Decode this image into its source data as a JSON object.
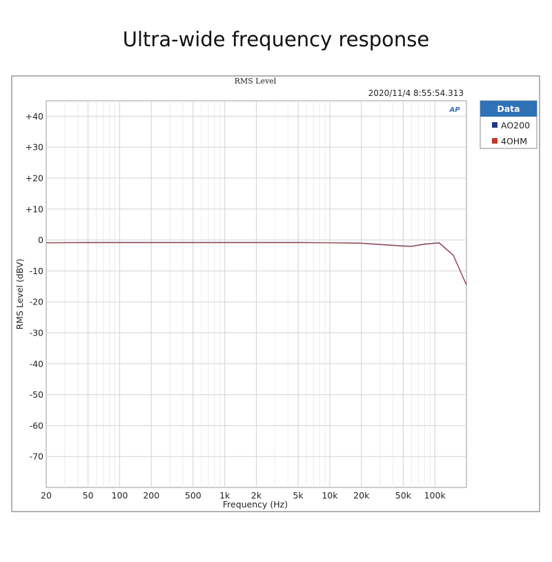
{
  "heading": "Ultra-wide frequency response",
  "chart_data": {
    "type": "line",
    "title": "RMS Level",
    "timestamp": "2020/11/4 8:55:54.313",
    "logo": "AP",
    "xlabel": "Frequency (Hz)",
    "ylabel": "RMS Level (dBV)",
    "x_scale": "log",
    "xlim": [
      20,
      200000
    ],
    "ylim": [
      -80,
      45
    ],
    "grid": true,
    "x_ticks": [
      {
        "value": 20,
        "label": "20"
      },
      {
        "value": 50,
        "label": "50"
      },
      {
        "value": 100,
        "label": "100"
      },
      {
        "value": 200,
        "label": "200"
      },
      {
        "value": 500,
        "label": "500"
      },
      {
        "value": 1000,
        "label": "1k"
      },
      {
        "value": 2000,
        "label": "2k"
      },
      {
        "value": 5000,
        "label": "5k"
      },
      {
        "value": 10000,
        "label": "10k"
      },
      {
        "value": 20000,
        "label": "20k"
      },
      {
        "value": 50000,
        "label": "50k"
      },
      {
        "value": 100000,
        "label": "100k"
      }
    ],
    "y_ticks": [
      {
        "value": 40,
        "label": "+40"
      },
      {
        "value": 30,
        "label": "+30"
      },
      {
        "value": 20,
        "label": "+20"
      },
      {
        "value": 10,
        "label": "+10"
      },
      {
        "value": 0,
        "label": "0"
      },
      {
        "value": -10,
        "label": "-10"
      },
      {
        "value": -20,
        "label": "-20"
      },
      {
        "value": -30,
        "label": "-30"
      },
      {
        "value": -40,
        "label": "-40"
      },
      {
        "value": -50,
        "label": "-50"
      },
      {
        "value": -60,
        "label": "-60"
      },
      {
        "value": -70,
        "label": "-70"
      }
    ],
    "legend": {
      "title": "Data",
      "position": "top-right"
    },
    "series": [
      {
        "name": "AO200",
        "color": "#1f3a8a",
        "x": [
          20,
          50,
          100,
          200,
          500,
          1000,
          2000,
          5000,
          10000,
          20000,
          30000,
          50000,
          60000,
          80000,
          100000,
          110000,
          150000,
          200000
        ],
        "y": [
          -0.9,
          -0.8,
          -0.8,
          -0.8,
          -0.8,
          -0.8,
          -0.8,
          -0.8,
          -0.9,
          -1.0,
          -1.4,
          -1.9,
          -2.0,
          -1.3,
          -1.0,
          -0.9,
          -4.9,
          -14.5
        ]
      },
      {
        "name": "4OHM",
        "color": "#c0392b",
        "x": [
          20,
          50,
          100,
          200,
          500,
          1000,
          2000,
          5000,
          10000,
          20000,
          30000,
          50000,
          60000,
          80000,
          100000,
          110000,
          150000,
          200000
        ],
        "y": [
          -0.9,
          -0.9,
          -0.9,
          -0.9,
          -0.9,
          -0.9,
          -0.9,
          -0.9,
          -0.9,
          -1.1,
          -1.5,
          -2.0,
          -2.1,
          -1.4,
          -1.1,
          -1.0,
          -5.0,
          -14.6
        ]
      }
    ]
  }
}
